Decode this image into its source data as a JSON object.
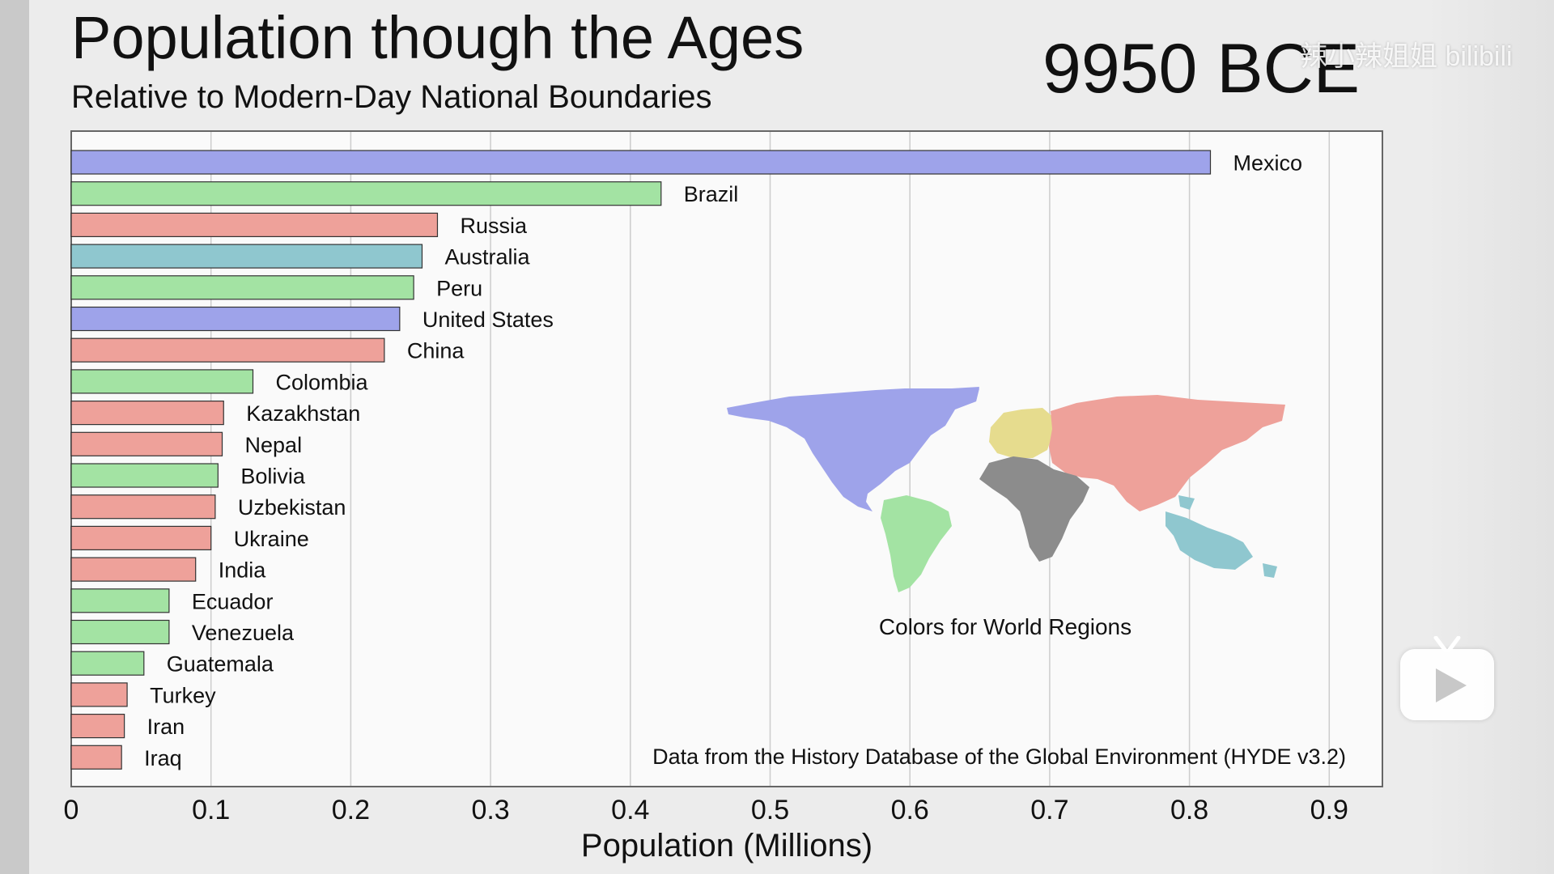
{
  "header": {
    "title": "Population though the Ages",
    "subtitle": "Relative to Modern-Day National Boundaries",
    "year": "9950 BCE"
  },
  "watermark": "辣小辣姐姐 bilibili",
  "chart_data": {
    "type": "bar",
    "orientation": "horizontal",
    "title": "Population though the Ages",
    "subtitle": "Relative to Modern-Day National Boundaries",
    "xlabel": "Population (Millions)",
    "xlim": [
      0,
      0.94
    ],
    "xticks": [
      0,
      0.1,
      0.2,
      0.3,
      0.4,
      0.5,
      0.6,
      0.7,
      0.8,
      0.9
    ],
    "xtick_labels": [
      "0",
      "0.1",
      "0.2",
      "0.3",
      "0.4",
      "0.5",
      "0.6",
      "0.7",
      "0.8",
      "0.9"
    ],
    "grid": true,
    "categories": [
      "Mexico",
      "Brazil",
      "Russia",
      "Australia",
      "Peru",
      "United States",
      "China",
      "Colombia",
      "Kazakhstan",
      "Nepal",
      "Bolivia",
      "Uzbekistan",
      "Ukraine",
      "India",
      "Ecuador",
      "Venezuela",
      "Guatemala",
      "Turkey",
      "Iran",
      "Iraq"
    ],
    "values": [
      0.815,
      0.422,
      0.262,
      0.251,
      0.245,
      0.235,
      0.224,
      0.13,
      0.109,
      0.108,
      0.105,
      0.103,
      0.1,
      0.089,
      0.07,
      0.07,
      0.052,
      0.04,
      0.038,
      0.036
    ],
    "regions": [
      "north-america",
      "south-america",
      "asia",
      "oceania",
      "south-america",
      "north-america",
      "asia",
      "south-america",
      "asia",
      "asia",
      "south-america",
      "asia",
      "asia",
      "asia",
      "south-america",
      "south-america",
      "south-america",
      "asia",
      "asia",
      "asia"
    ],
    "region_colors": {
      "north-america": "#9ea3ea",
      "south-america": "#a3e3a3",
      "asia": "#eea19a",
      "oceania": "#8fc7cf",
      "europe": "#e6dc8e",
      "africa": "#8c8c8c"
    },
    "legend_caption": "Colors for World Regions",
    "source_note": "Data from the History Database of the Global Environment (HYDE v3.2)"
  }
}
